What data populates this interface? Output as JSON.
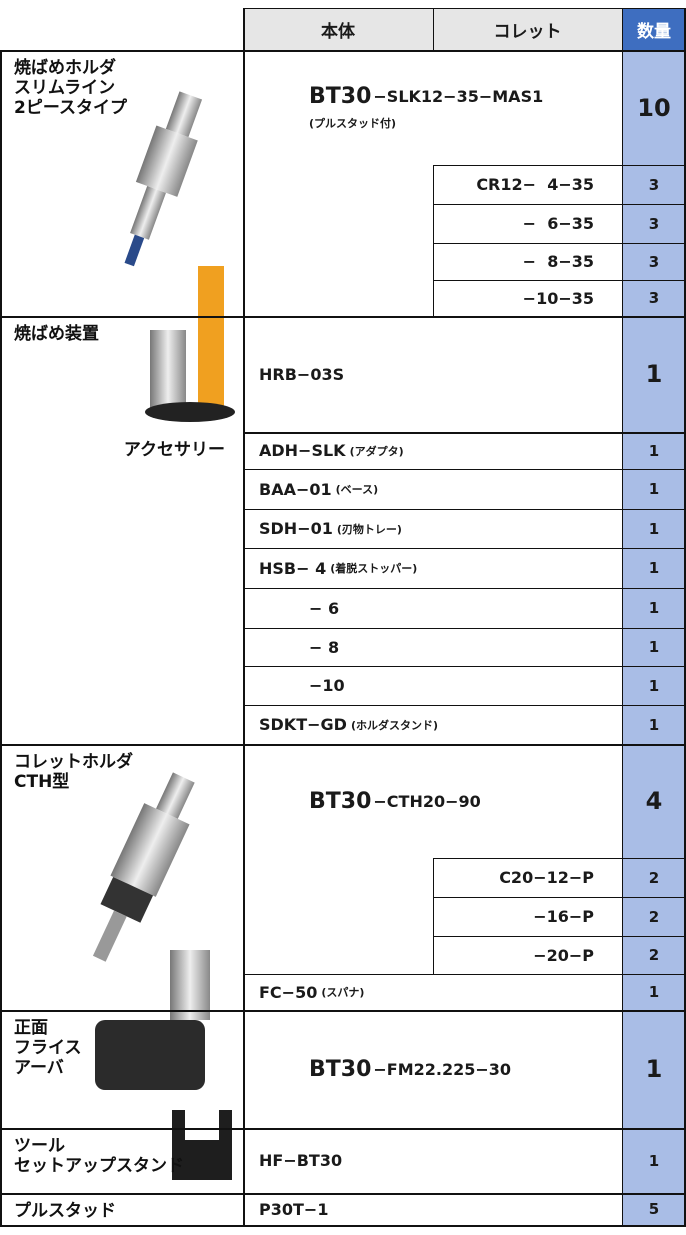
{
  "header": {
    "body": "本体",
    "collet": "コレット",
    "qty": "数量"
  },
  "sections": [
    {
      "label": [
        "焼ばめホルダ",
        "スリムライン",
        "2ピースタイプ"
      ],
      "rows": [
        {
          "model": "BT30",
          "body": "−SLK12−35−MAS1",
          "note": "(プルスタッド付)",
          "qty": 10
        },
        {
          "collet": "CR12−  4−35",
          "qty": 3
        },
        {
          "collet": "−  6−35",
          "qty": 3
        },
        {
          "collet": "−  8−35",
          "qty": 3
        },
        {
          "collet": "−10−35",
          "qty": 3
        }
      ]
    },
    {
      "label": [
        "焼ばめ装置"
      ],
      "rows": [
        {
          "body": "HRB−03S",
          "qty": 1
        }
      ]
    },
    {
      "label": [
        "アクセサリー"
      ],
      "rows": [
        {
          "body": "ADH−SLK",
          "note": "(アダプタ)",
          "qty": 1
        },
        {
          "body": "BAA−01",
          "note": "(ベース)",
          "qty": 1
        },
        {
          "body": "SDH−01",
          "note": "(刃物トレー)",
          "qty": 1
        },
        {
          "body": "HSB− 4",
          "note": "(着脱ストッパー)",
          "qty": 1
        },
        {
          "body": "− 6",
          "qty": 1
        },
        {
          "body": "− 8",
          "qty": 1
        },
        {
          "body": "−10",
          "qty": 1
        },
        {
          "body": "SDKT−GD",
          "note": "(ホルダスタンド)",
          "qty": 1
        }
      ]
    },
    {
      "label": [
        "コレットホルダ",
        "CTH型"
      ],
      "rows": [
        {
          "model": "BT30",
          "body": "−CTH20−90",
          "qty": 4
        },
        {
          "collet": "C20−12−P",
          "qty": 2
        },
        {
          "collet": "−16−P",
          "qty": 2
        },
        {
          "collet": "−20−P",
          "qty": 2
        },
        {
          "body": "FC−50",
          "note": "(スパナ)",
          "qty": 1
        }
      ]
    },
    {
      "label": [
        "正面",
        "フライス",
        "アーバ"
      ],
      "rows": [
        {
          "model": "BT30",
          "body": "−FM22.225−30",
          "qty": 1
        }
      ]
    },
    {
      "label": [
        "ツール",
        "セットアップスタンド"
      ],
      "rows": [
        {
          "body": "HF−BT30",
          "qty": 1
        }
      ]
    },
    {
      "label": [
        "プルスタッド"
      ],
      "rows": [
        {
          "body": "P30T−1",
          "qty": 5
        }
      ]
    }
  ]
}
